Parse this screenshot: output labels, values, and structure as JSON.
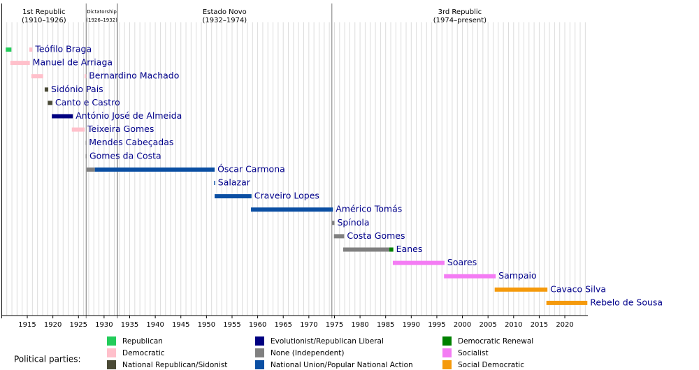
{
  "chart_data": {
    "type": "timeline",
    "xlim": [
      1910,
      2024.5
    ],
    "xticks": [
      1915,
      1920,
      1925,
      1930,
      1935,
      1940,
      1945,
      1950,
      1955,
      1960,
      1965,
      1970,
      1975,
      1980,
      1985,
      1990,
      1995,
      2000,
      2005,
      2010,
      2015,
      2020
    ],
    "minor_xticks": [
      1911,
      1912,
      1913,
      1914,
      1915,
      1916,
      1917,
      1918,
      1919,
      1920,
      1921,
      1922,
      1923,
      1924,
      1925,
      1926,
      1927,
      1928,
      1929,
      1930,
      1931,
      1932,
      1933,
      1934,
      1935,
      1936,
      1937,
      1938,
      1939,
      1940,
      1941,
      1942,
      1943,
      1944,
      1945,
      1946,
      1947,
      1948,
      1949,
      1950,
      1951,
      1952,
      1953,
      1954,
      1955,
      1956,
      1957,
      1958,
      1959,
      1960,
      1961,
      1962,
      1963,
      1964,
      1965,
      1966,
      1967,
      1968,
      1969,
      1970,
      1971,
      1972,
      1973,
      1974,
      1975,
      1976,
      1977,
      1978,
      1979,
      1980,
      1981,
      1982,
      1983,
      1984,
      1985,
      1986,
      1987,
      1988,
      1989,
      1990,
      1991,
      1992,
      1993,
      1994,
      1995,
      1996,
      1997,
      1998,
      1999,
      2000,
      2001,
      2002,
      2003,
      2004,
      2005,
      2006,
      2007,
      2008,
      2009,
      2010,
      2011,
      2012,
      2013,
      2014,
      2015,
      2016,
      2017,
      2018,
      2019,
      2020,
      2021,
      2022,
      2023,
      2024
    ],
    "eras": [
      {
        "name": "1st Republic",
        "period": "(1910–1926)",
        "start": 1910,
        "end": 1926.5
      },
      {
        "name": "Dictatorship",
        "period": "(1926–1932)",
        "start": 1926.5,
        "end": 1932.6
      },
      {
        "name": "Estado Novo",
        "period": "(1932–1974)",
        "start": 1932.6,
        "end": 1974.5
      },
      {
        "name": "3rd Republic",
        "period": "(1974–present)",
        "start": 1974.5,
        "end": 2024.5
      }
    ],
    "rows": [
      {
        "name": "Teófilo Braga",
        "segments": [
          {
            "start": 1910.8,
            "end": 1911.9,
            "color": "#22cc5a"
          },
          {
            "start": 1915.4,
            "end": 1916.0,
            "color": "#ffc0cb"
          }
        ]
      },
      {
        "name": "Manuel de Arriaga",
        "segments": [
          {
            "start": 1911.7,
            "end": 1915.5,
            "color": "#ffc0cb"
          }
        ]
      },
      {
        "name": "Bernardino Machado",
        "segments": [
          {
            "start": 1915.8,
            "end": 1918.1,
            "color": "#ffc0cb"
          },
          {
            "start": 1926.2,
            "end": 1926.5,
            "color": "#ffc0cb"
          }
        ]
      },
      {
        "name": "Sidónio Pais",
        "segments": [
          {
            "start": 1918.4,
            "end": 1919.1,
            "color": "#4a4a36"
          }
        ]
      },
      {
        "name": "Canto e Castro",
        "segments": [
          {
            "start": 1919.0,
            "end": 1919.9,
            "color": "#4a4a36"
          }
        ]
      },
      {
        "name": "António José de Almeida",
        "segments": [
          {
            "start": 1919.8,
            "end": 1923.9,
            "color": "#000080"
          }
        ]
      },
      {
        "name": "Teixeira Gomes",
        "segments": [
          {
            "start": 1923.7,
            "end": 1926.2,
            "color": "#ffc0cb"
          }
        ]
      },
      {
        "name": "Mendes Cabeçadas",
        "segments": [
          {
            "start": 1926.4,
            "end": 1926.5,
            "color": "#808080"
          }
        ]
      },
      {
        "name": "Gomes da Costa",
        "segments": [
          {
            "start": 1926.4,
            "end": 1926.6,
            "color": "#808080"
          }
        ]
      },
      {
        "name": "Óscar Carmona",
        "segments": [
          {
            "start": 1926.6,
            "end": 1928.2,
            "color": "#808080"
          },
          {
            "start": 1928.2,
            "end": 1951.6,
            "color": "#0b4fa3"
          }
        ]
      },
      {
        "name": "Salazar",
        "segments": [
          {
            "start": 1951.5,
            "end": 1951.7,
            "color": "#0b4fa3"
          }
        ]
      },
      {
        "name": "Craveiro Lopes",
        "segments": [
          {
            "start": 1951.6,
            "end": 1958.8,
            "color": "#0b4fa3"
          }
        ]
      },
      {
        "name": "Américo Tomás",
        "segments": [
          {
            "start": 1958.7,
            "end": 1974.7,
            "color": "#0b4fa3"
          }
        ]
      },
      {
        "name": "Spínola",
        "segments": [
          {
            "start": 1974.5,
            "end": 1975.0,
            "color": "#808080"
          }
        ]
      },
      {
        "name": "Costa Gomes",
        "segments": [
          {
            "start": 1974.9,
            "end": 1976.9,
            "color": "#808080"
          }
        ]
      },
      {
        "name": "Eanes",
        "segments": [
          {
            "start": 1976.7,
            "end": 1985.7,
            "color": "#808080"
          },
          {
            "start": 1985.7,
            "end": 1986.5,
            "color": "#008000"
          }
        ]
      },
      {
        "name": "Soares",
        "segments": [
          {
            "start": 1986.4,
            "end": 1996.5,
            "color": "#f47cf4"
          }
        ]
      },
      {
        "name": "Sampaio",
        "segments": [
          {
            "start": 1996.4,
            "end": 2006.5,
            "color": "#f47cf4"
          }
        ]
      },
      {
        "name": "Cavaco Silva",
        "segments": [
          {
            "start": 2006.3,
            "end": 2016.6,
            "color": "#f59a0c"
          }
        ]
      },
      {
        "name": "Rebelo de Sousa",
        "segments": [
          {
            "start": 2016.4,
            "end": 2024.4,
            "color": "#f59a0c"
          }
        ]
      }
    ],
    "legend_title": "Political parties:",
    "legend": [
      {
        "name": "Republican",
        "color": "#22cc5a"
      },
      {
        "name": "Democratic",
        "color": "#ffc0cb"
      },
      {
        "name": "National Republican/Sidonist",
        "color": "#4a4a36"
      },
      {
        "name": "Evolutionist/Republican Liberal",
        "color": "#000080"
      },
      {
        "name": "None (Independent)",
        "color": "#808080"
      },
      {
        "name": "National Union/Popular National Action",
        "color": "#0b4fa3"
      },
      {
        "name": "Democratic Renewal",
        "color": "#008000"
      },
      {
        "name": "Socialist",
        "color": "#f47cf4"
      },
      {
        "name": "Social Democratic",
        "color": "#f59a0c"
      }
    ]
  }
}
